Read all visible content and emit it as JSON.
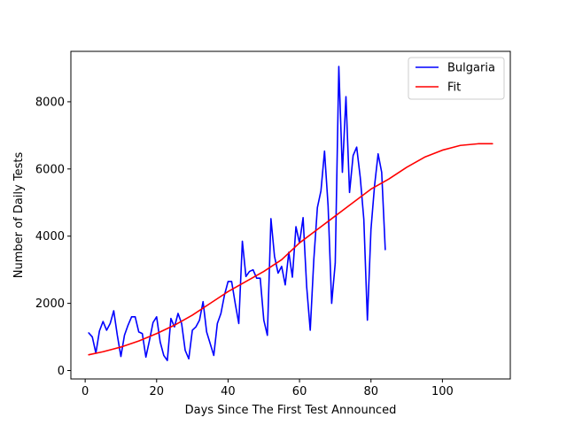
{
  "chart_data": {
    "type": "line",
    "title": "",
    "xlabel": "Days Since The First Test Announced",
    "ylabel": "Number of Daily Tests",
    "xlim": [
      -4,
      119
    ],
    "ylim": [
      -250,
      9500
    ],
    "x_ticks": [
      0,
      20,
      40,
      60,
      80,
      100
    ],
    "y_ticks": [
      0,
      2000,
      4000,
      6000,
      8000
    ],
    "grid": false,
    "legend_position": "top-right",
    "series": [
      {
        "name": "Bulgaria",
        "color": "#0000ff",
        "x": [
          1,
          2,
          3,
          4,
          5,
          6,
          7,
          8,
          9,
          10,
          11,
          12,
          13,
          14,
          15,
          16,
          17,
          18,
          19,
          20,
          21,
          22,
          23,
          24,
          25,
          26,
          27,
          28,
          29,
          30,
          31,
          32,
          33,
          34,
          35,
          36,
          37,
          38,
          39,
          40,
          41,
          42,
          43,
          44,
          45,
          46,
          47,
          48,
          49,
          50,
          51,
          52,
          53,
          54,
          55,
          56,
          57,
          58,
          59,
          60,
          61,
          62,
          63,
          64,
          65,
          66,
          67,
          68,
          69,
          70,
          71,
          72,
          73,
          74,
          75,
          76,
          77,
          78,
          79,
          80,
          81,
          82,
          83,
          84
        ],
        "y": [
          1120,
          1000,
          520,
          1180,
          1460,
          1200,
          1400,
          1780,
          1050,
          420,
          1050,
          1350,
          1600,
          1600,
          1150,
          1100,
          400,
          900,
          1430,
          1600,
          850,
          450,
          300,
          1550,
          1300,
          1700,
          1400,
          600,
          350,
          1200,
          1300,
          1500,
          2050,
          1150,
          800,
          450,
          1400,
          1700,
          2250,
          2650,
          2650,
          2000,
          1400,
          3850,
          2800,
          2950,
          3000,
          2750,
          2750,
          1500,
          1050,
          4520,
          3400,
          2900,
          3100,
          2550,
          3520,
          2780,
          4280,
          3800,
          4550,
          2500,
          1200,
          3300,
          4850,
          5350,
          6530,
          4900,
          2000,
          3200,
          9050,
          5900,
          8150,
          5300,
          6400,
          6650,
          5750,
          4500,
          1500,
          4200,
          5500,
          6450,
          5900,
          3600
        ]
      },
      {
        "name": "Fit",
        "color": "#ff0000",
        "x": [
          1,
          5,
          10,
          15,
          20,
          25,
          30,
          35,
          40,
          45,
          50,
          55,
          60,
          65,
          70,
          75,
          80,
          85,
          90,
          95,
          100,
          105,
          110,
          114
        ],
        "y": [
          470,
          560,
          700,
          880,
          1100,
          1350,
          1650,
          2000,
          2350,
          2650,
          2950,
          3300,
          3800,
          4200,
          4600,
          5000,
          5400,
          5700,
          6050,
          6350,
          6560,
          6700,
          6750,
          6750
        ]
      }
    ]
  }
}
